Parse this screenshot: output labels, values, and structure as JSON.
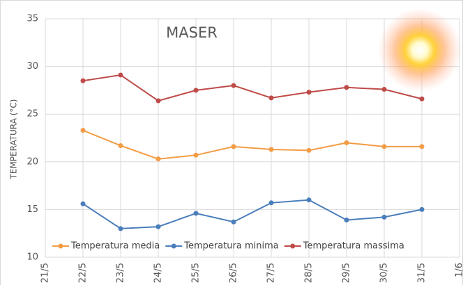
{
  "chart_data": {
    "type": "line",
    "title": "MASER",
    "y_label": "TEMPERATURA (°C)",
    "categories": [
      "21/5",
      "22/5",
      "23/5",
      "24/5",
      "25/5",
      "26/5",
      "27/5",
      "28/5",
      "29/5",
      "30/5",
      "31/5",
      "1/6"
    ],
    "series": [
      {
        "name": "Temperatura media",
        "color": "#f39c45",
        "values": [
          null,
          23.3,
          21.7,
          20.3,
          20.7,
          21.6,
          21.3,
          21.2,
          22.0,
          21.6,
          21.6,
          null
        ]
      },
      {
        "name": "Temperatura minima",
        "color": "#4a7ebb",
        "values": [
          null,
          15.6,
          13.0,
          13.2,
          14.6,
          13.7,
          15.7,
          16.0,
          13.9,
          14.2,
          15.0,
          null
        ]
      },
      {
        "name": "Temperatura massima",
        "color": "#be4b48",
        "values": [
          null,
          28.5,
          29.1,
          26.4,
          27.5,
          28.0,
          26.7,
          27.3,
          27.8,
          27.6,
          26.6,
          null
        ]
      }
    ],
    "ylim": [
      10,
      35
    ],
    "yticks": [
      10,
      15,
      20,
      25,
      30,
      35
    ],
    "grid": true,
    "legend": "bottom"
  }
}
